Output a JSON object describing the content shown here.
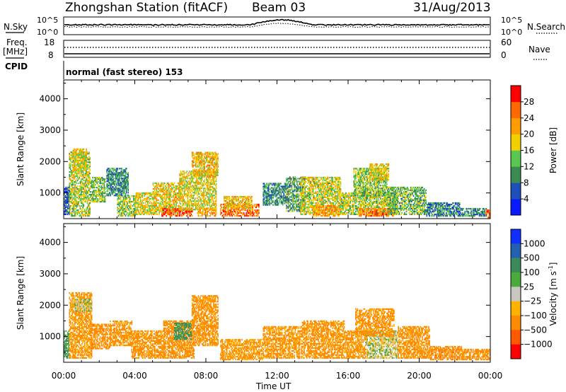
{
  "header": {
    "station_title": "Zhongshan Station (fitACF)",
    "beam": "Beam 03",
    "date": "31/Aug/2013"
  },
  "top_panels": {
    "nsky": {
      "label": "N.Sky",
      "ticks": [
        "10^5",
        "10^0"
      ],
      "right_label": "N.Search",
      "right_ticks": [
        "10^5",
        "10^0"
      ]
    },
    "freq": {
      "label_top": "Freq.",
      "label_unit": "[MHz]",
      "ticks": [
        "18",
        "8"
      ],
      "right_label": "Nave",
      "right_ticks": [
        "60",
        "0"
      ]
    },
    "cpid": {
      "label": "CPID",
      "text": "normal (fast stereo) 153"
    }
  },
  "chart_data": [
    {
      "type": "heatmap",
      "name": "power",
      "ylabel": "Slant Range [km]",
      "xlabel": "Time UT",
      "xlim": [
        0,
        24
      ],
      "ylim": [
        180,
        4600
      ],
      "yticks": [
        1000,
        2000,
        3000,
        4000
      ],
      "xticks": [
        "00:00",
        "04:00",
        "08:00",
        "12:00",
        "16:00",
        "20:00",
        "00:00"
      ],
      "colorbar": {
        "label": "Power [dB]",
        "ticks": [
          "4",
          "8",
          "12",
          "16",
          "20",
          "24",
          "28"
        ],
        "colors": [
          "#0a1aff",
          "#1f4fb8",
          "#3a8a52",
          "#58c850",
          "#f2d000",
          "#ff9c00",
          "#ff6a00",
          "#ff0000"
        ]
      },
      "regions": [
        {
          "t0": 0.0,
          "t1": 0.35,
          "r0": 300,
          "r1": 1200,
          "value": 6
        },
        {
          "t0": 0.3,
          "t1": 1.5,
          "r0": 250,
          "r1": 2300,
          "value": 16
        },
        {
          "t0": 0.5,
          "t1": 1.3,
          "r0": 1700,
          "r1": 2400,
          "value": 18
        },
        {
          "t0": 1.5,
          "t1": 2.3,
          "r0": 700,
          "r1": 1500,
          "value": 14
        },
        {
          "t0": 2.4,
          "t1": 3.6,
          "r0": 900,
          "r1": 1800,
          "value": 10
        },
        {
          "t0": 3.0,
          "t1": 4.0,
          "r0": 250,
          "r1": 900,
          "value": 15
        },
        {
          "t0": 4.0,
          "t1": 5.2,
          "r0": 300,
          "r1": 1000,
          "value": 18
        },
        {
          "t0": 5.0,
          "t1": 6.5,
          "r0": 300,
          "r1": 1300,
          "value": 19
        },
        {
          "t0": 5.5,
          "t1": 7.2,
          "r0": 250,
          "r1": 500,
          "value": 27
        },
        {
          "t0": 6.5,
          "t1": 8.6,
          "r0": 450,
          "r1": 1700,
          "value": 18
        },
        {
          "t0": 7.2,
          "t1": 8.7,
          "r0": 1500,
          "r1": 2300,
          "value": 20
        },
        {
          "t0": 7.5,
          "t1": 8.6,
          "r0": 250,
          "r1": 500,
          "value": 22
        },
        {
          "t0": 8.8,
          "t1": 11.0,
          "r0": 250,
          "r1": 650,
          "value": 25
        },
        {
          "t0": 9.0,
          "t1": 10.6,
          "r0": 500,
          "r1": 900,
          "value": 20
        },
        {
          "t0": 11.2,
          "t1": 12.5,
          "r0": 600,
          "r1": 1300,
          "value": 10
        },
        {
          "t0": 12.5,
          "t1": 13.6,
          "r0": 400,
          "r1": 1500,
          "value": 12
        },
        {
          "t0": 13.3,
          "t1": 15.6,
          "r0": 300,
          "r1": 1500,
          "value": 17
        },
        {
          "t0": 14.0,
          "t1": 15.5,
          "r0": 250,
          "r1": 600,
          "value": 22
        },
        {
          "t0": 15.5,
          "t1": 18.8,
          "r0": 300,
          "r1": 1000,
          "value": 16
        },
        {
          "t0": 16.6,
          "t1": 18.6,
          "r0": 250,
          "r1": 500,
          "value": 24
        },
        {
          "t0": 16.3,
          "t1": 18.2,
          "r0": 900,
          "r1": 1800,
          "value": 14
        },
        {
          "t0": 17.2,
          "t1": 18.3,
          "r0": 1400,
          "r1": 1900,
          "value": 19
        },
        {
          "t0": 18.2,
          "t1": 20.4,
          "r0": 300,
          "r1": 1200,
          "value": 13
        },
        {
          "t0": 20.4,
          "t1": 22.3,
          "r0": 250,
          "r1": 700,
          "value": 9
        },
        {
          "t0": 22.3,
          "t1": 23.8,
          "r0": 250,
          "r1": 500,
          "value": 10
        },
        {
          "t0": 23.75,
          "t1": 24.0,
          "r0": 200,
          "r1": 450,
          "value": 29
        }
      ]
    },
    {
      "type": "heatmap",
      "name": "velocity",
      "ylabel": "Slant Range [km]",
      "xlabel": "Time UT",
      "xlim": [
        0,
        24
      ],
      "ylim": [
        180,
        4600
      ],
      "yticks": [
        1000,
        2000,
        3000,
        4000
      ],
      "xticks": [
        "00:00",
        "04:00",
        "08:00",
        "12:00",
        "16:00",
        "20:00",
        "00:00"
      ],
      "colorbar": {
        "label": "Velocity [m s^-1]",
        "ticks": [
          "1000",
          "500",
          "100",
          "25",
          "−25",
          "−100",
          "−500",
          "−1000"
        ],
        "colors": [
          "#1030ff",
          "#2460b0",
          "#3c8a5a",
          "#4caa3c",
          "#c8c8c0",
          "#ffb200",
          "#ff8c00",
          "#ff5a00",
          "#ff0000"
        ]
      },
      "regions": [
        {
          "t0": 0.0,
          "t1": 0.35,
          "r0": 300,
          "r1": 1200,
          "value": 100
        },
        {
          "t0": 0.3,
          "t1": 1.6,
          "r0": 300,
          "r1": 2400,
          "value": -150
        },
        {
          "t0": 0.6,
          "t1": 1.6,
          "r0": 1800,
          "r1": 2200,
          "value": 0
        },
        {
          "t0": 1.5,
          "t1": 2.6,
          "r0": 600,
          "r1": 1400,
          "value": -300
        },
        {
          "t0": 2.6,
          "t1": 3.8,
          "r0": 700,
          "r1": 1500,
          "value": -200
        },
        {
          "t0": 3.8,
          "t1": 5.6,
          "r0": 300,
          "r1": 1200,
          "value": -200
        },
        {
          "t0": 5.6,
          "t1": 7.3,
          "r0": 300,
          "r1": 1500,
          "value": -250
        },
        {
          "t0": 6.2,
          "t1": 7.2,
          "r0": 900,
          "r1": 1400,
          "value": 150
        },
        {
          "t0": 7.2,
          "t1": 8.7,
          "r0": 700,
          "r1": 2300,
          "value": -200
        },
        {
          "t0": 8.8,
          "t1": 11.2,
          "r0": 250,
          "r1": 900,
          "value": -150
        },
        {
          "t0": 11.2,
          "t1": 13.4,
          "r0": 300,
          "r1": 1300,
          "value": -150
        },
        {
          "t0": 13.4,
          "t1": 15.8,
          "r0": 300,
          "r1": 1500,
          "value": -200
        },
        {
          "t0": 15.8,
          "t1": 17.0,
          "r0": 300,
          "r1": 1200,
          "value": -150
        },
        {
          "t0": 17.0,
          "t1": 18.8,
          "r0": 300,
          "r1": 1200,
          "value": -10
        },
        {
          "t0": 16.4,
          "t1": 18.6,
          "r0": 1000,
          "r1": 1900,
          "value": -200
        },
        {
          "t0": 18.8,
          "t1": 20.6,
          "r0": 300,
          "r1": 1300,
          "value": -200
        },
        {
          "t0": 20.6,
          "t1": 22.4,
          "r0": 250,
          "r1": 700,
          "value": -300
        },
        {
          "t0": 22.4,
          "t1": 24.0,
          "r0": 250,
          "r1": 600,
          "value": -200
        }
      ]
    }
  ]
}
